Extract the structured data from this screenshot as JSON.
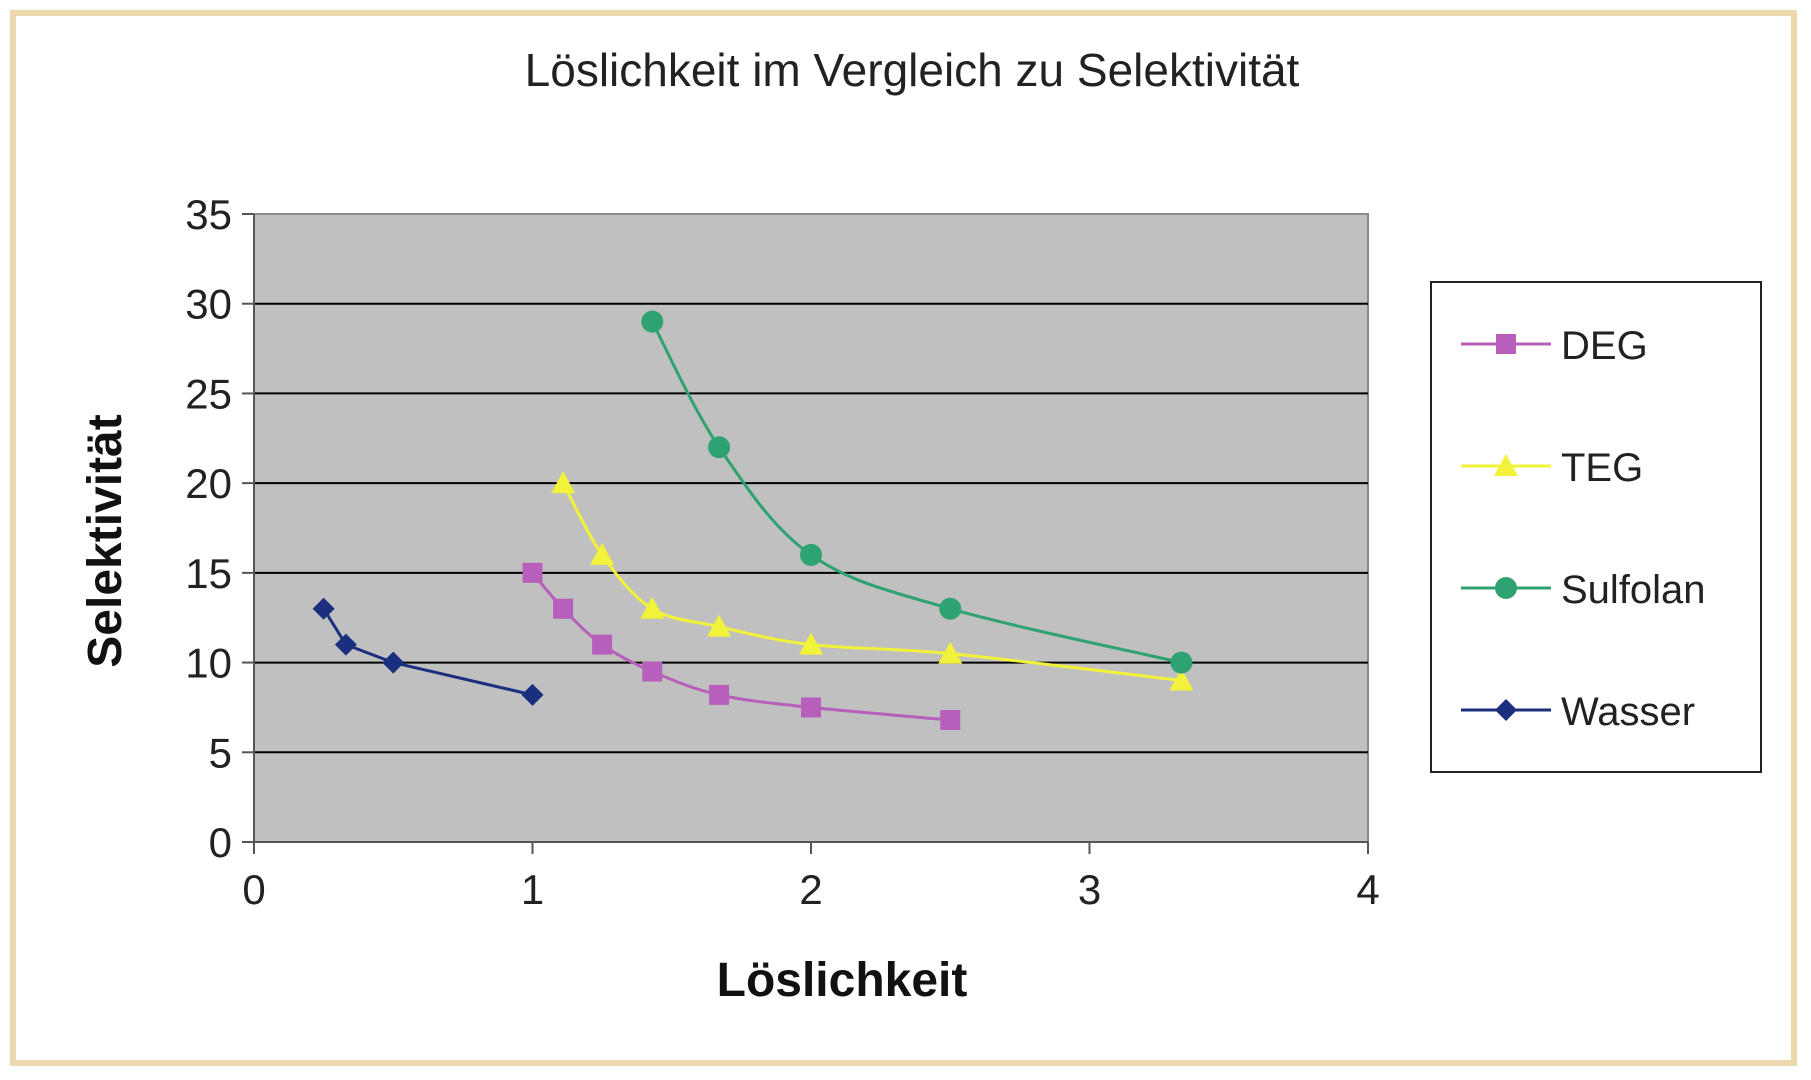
{
  "chart_data": {
    "type": "line",
    "title": "Löslichkeit im Vergleich zu Selektivität",
    "xlabel": "Löslichkeit",
    "ylabel": "Selektivität",
    "xlim": [
      0,
      4
    ],
    "ylim": [
      0,
      35
    ],
    "xticks": [
      0,
      1,
      2,
      3,
      4
    ],
    "yticks": [
      0,
      5,
      10,
      15,
      20,
      25,
      30,
      35
    ],
    "grid": "horizontal",
    "legend_position": "right",
    "plot_background": "#c0c0c0",
    "series": [
      {
        "name": "DEG",
        "color": "#b65fbb",
        "marker": "square",
        "x": [
          1.0,
          1.11,
          1.25,
          1.43,
          1.67,
          2.0,
          2.5
        ],
        "y": [
          15,
          13,
          11,
          9.5,
          8.2,
          7.5,
          6.8
        ]
      },
      {
        "name": "TEG",
        "color": "#f2f23a",
        "marker": "triangle",
        "x": [
          1.11,
          1.25,
          1.43,
          1.67,
          2.0,
          2.5,
          3.33
        ],
        "y": [
          20,
          16,
          13,
          12,
          11,
          10.5,
          9.0
        ]
      },
      {
        "name": "Sulfolan",
        "color": "#2fa272",
        "marker": "circle",
        "x": [
          1.43,
          1.67,
          2.0,
          2.5,
          3.33
        ],
        "y": [
          29,
          22,
          16,
          13,
          10
        ]
      },
      {
        "name": "Wasser",
        "color": "#1c2f7e",
        "marker": "diamond",
        "x": [
          0.25,
          0.33,
          0.5,
          1.0
        ],
        "y": [
          13,
          11,
          10,
          8.2
        ]
      }
    ]
  }
}
